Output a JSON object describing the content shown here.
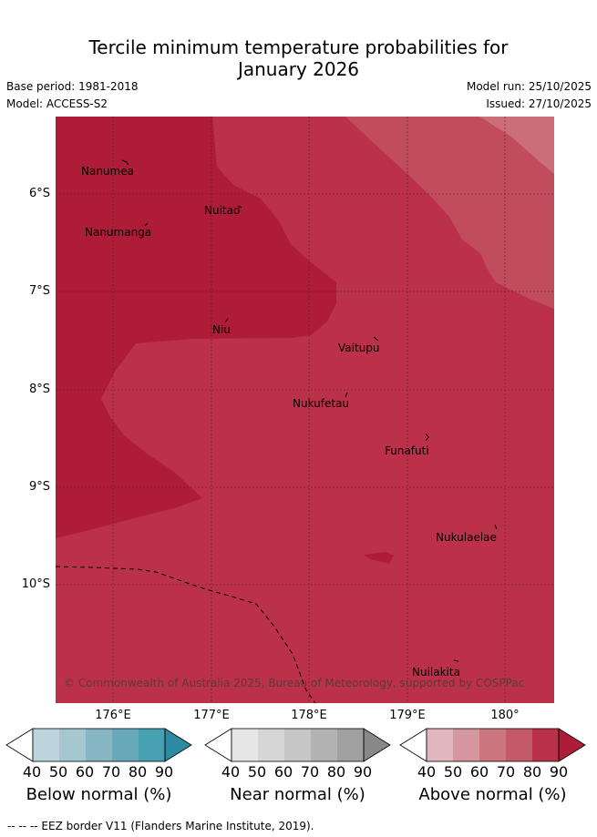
{
  "title": {
    "line1": "Tercile minimum temperature probabilities for",
    "line2": "January 2026"
  },
  "meta": {
    "base_period": "Base period: 1981-2018",
    "model": "Model: ACCESS-S2",
    "model_run": "Model run: 25/10/2025",
    "issued": "Issued: 27/10/2025"
  },
  "axes": {
    "lat_labels": [
      "6°S",
      "7°S",
      "8°S",
      "9°S",
      "10°S"
    ],
    "lon_labels": [
      "176°E",
      "177°E",
      "178°E",
      "179°E",
      "180°"
    ]
  },
  "islands": [
    {
      "name": "Nanumea"
    },
    {
      "name": "Nuitao"
    },
    {
      "name": "Nanumanga"
    },
    {
      "name": "Niu"
    },
    {
      "name": "Vaitupu"
    },
    {
      "name": "Nukufetau"
    },
    {
      "name": "Funafuti"
    },
    {
      "name": "Nukulaelae"
    },
    {
      "name": "Nuilakita"
    }
  ],
  "credit": "© Commonwealth of Australia 2025, Bureau of Meteorology, supported by COSPPac",
  "legend": {
    "below": {
      "title": "Below normal (%)",
      "ticks": [
        "40",
        "50",
        "60",
        "70",
        "80",
        "90"
      ],
      "colors": [
        "#ffffff",
        "#bcd5dc",
        "#a5c8d0",
        "#86b6c3",
        "#68a9b9",
        "#48a1b2",
        "#2b8ba0"
      ]
    },
    "near": {
      "title": "Near normal (%)",
      "ticks": [
        "40",
        "50",
        "60",
        "70",
        "80",
        "90"
      ],
      "colors": [
        "#ffffff",
        "#e6e6e6",
        "#d6d6d6",
        "#c6c6c6",
        "#b3b3b3",
        "#a0a0a0",
        "#888888"
      ]
    },
    "above": {
      "title": "Above normal (%)",
      "ticks": [
        "40",
        "50",
        "60",
        "70",
        "80",
        "90"
      ],
      "colors": [
        "#ffffff",
        "#e1b6bd",
        "#d6969f",
        "#cc7680",
        "#c45a68",
        "#b93249",
        "#ad1c38"
      ]
    }
  },
  "footer": "--  --  -- EEZ border V11 (Flanders Marine Institute, 2019).",
  "map_colors": {
    "c90": "#ae1c37",
    "c80": "#bb3149",
    "c70": "#c04c5c",
    "c60": "#cc6e78"
  }
}
